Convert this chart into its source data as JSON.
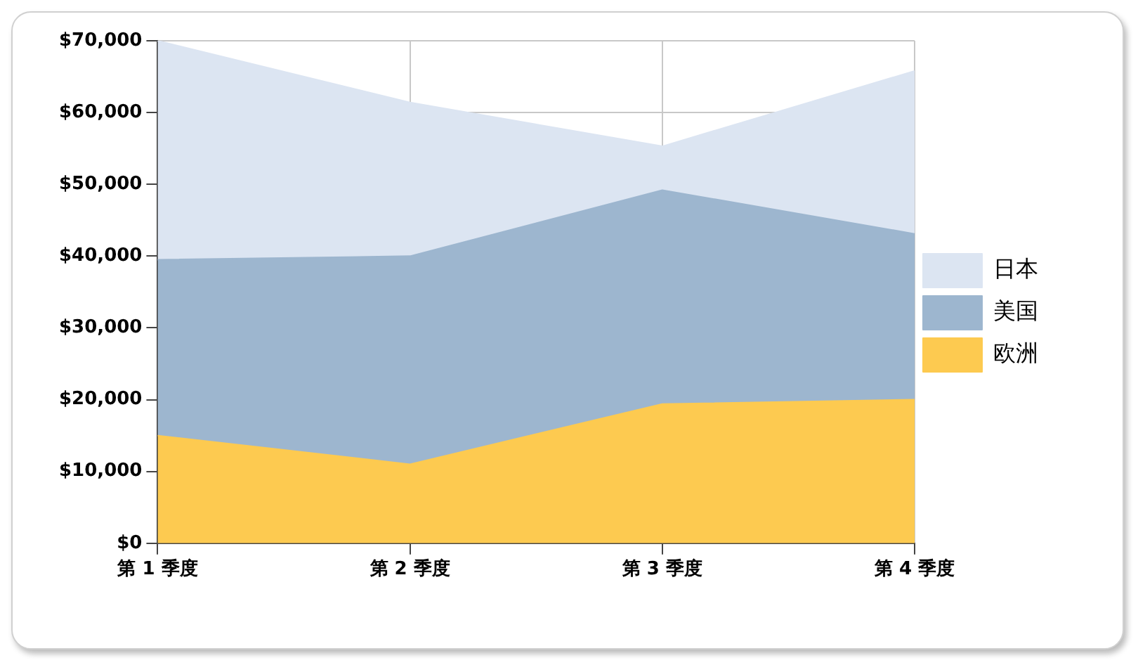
{
  "chart_data": {
    "type": "area",
    "stacked": true,
    "categories": [
      "第 1 季度",
      "第 2 季度",
      "第 3 季度",
      "第 4 季度"
    ],
    "series": [
      {
        "name": "欧洲",
        "color": "#fdca50",
        "values": [
          15000,
          11000,
          19400,
          20000
        ]
      },
      {
        "name": "美国",
        "color": "#9db6cf",
        "values": [
          24500,
          29000,
          29800,
          23100
        ]
      },
      {
        "name": "日本",
        "color": "#dce5f2",
        "values": [
          30500,
          21400,
          6100,
          22700
        ]
      }
    ],
    "ylim": [
      0,
      70000
    ],
    "yticks": [
      {
        "value": 0,
        "label": "$0"
      },
      {
        "value": 10000,
        "label": "$10,000"
      },
      {
        "value": 20000,
        "label": "$20,000"
      },
      {
        "value": 30000,
        "label": "$30,000"
      },
      {
        "value": 40000,
        "label": "$40,000"
      },
      {
        "value": 50000,
        "label": "$50,000"
      },
      {
        "value": 60000,
        "label": "$60,000"
      },
      {
        "value": 70000,
        "label": "$70,000"
      }
    ],
    "grid": true,
    "legend": "right"
  }
}
